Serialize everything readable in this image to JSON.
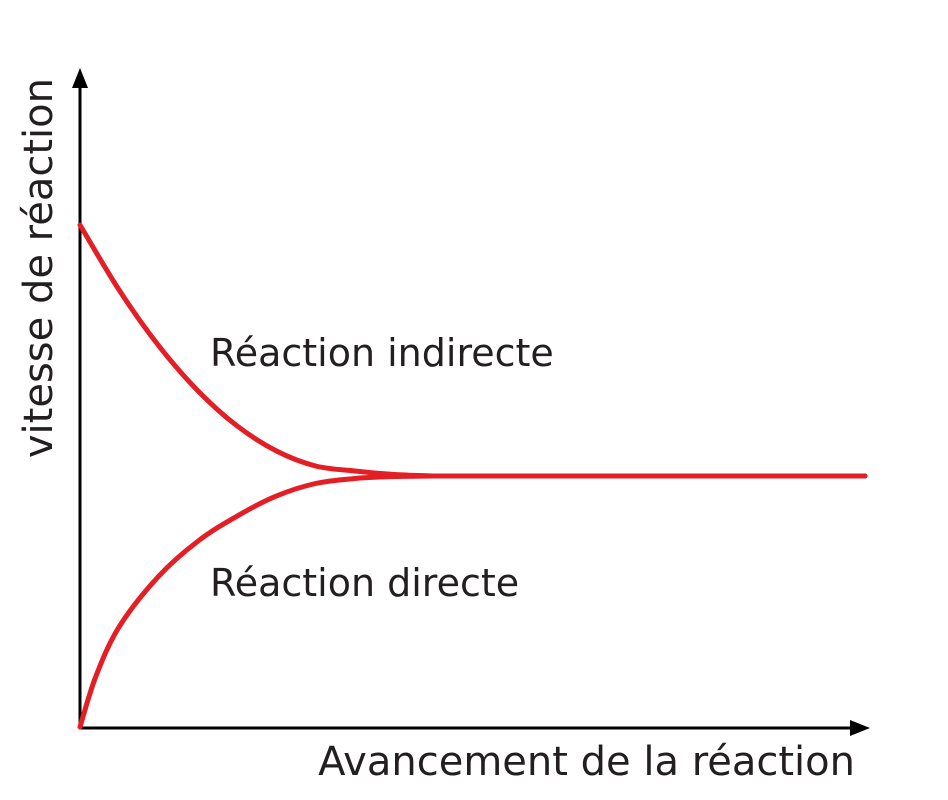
{
  "chart_data": {
    "type": "line",
    "xlabel": "Avancement de la réaction",
    "ylabel": "vitesse de réaction",
    "xlim": [
      0,
      1
    ],
    "ylim": [
      0,
      1
    ],
    "grid": false,
    "equilibrium_x": 0.45,
    "series": [
      {
        "name": "Réaction indirecte",
        "color": "#e31e24",
        "x": [
          0,
          0.05,
          0.1,
          0.15,
          0.2,
          0.25,
          0.3,
          0.35,
          0.4,
          0.45,
          1.0
        ],
        "y": [
          1.0,
          0.87,
          0.76,
          0.67,
          0.6,
          0.55,
          0.52,
          0.51,
          0.503,
          0.5,
          0.5
        ]
      },
      {
        "name": "Réaction directe",
        "color": "#e31e24",
        "x": [
          0,
          0.02,
          0.05,
          0.1,
          0.15,
          0.2,
          0.25,
          0.3,
          0.35,
          0.4,
          0.45,
          1.0
        ],
        "y": [
          0.0,
          0.1,
          0.2,
          0.3,
          0.37,
          0.42,
          0.46,
          0.485,
          0.495,
          0.499,
          0.5,
          0.5
        ]
      }
    ]
  }
}
